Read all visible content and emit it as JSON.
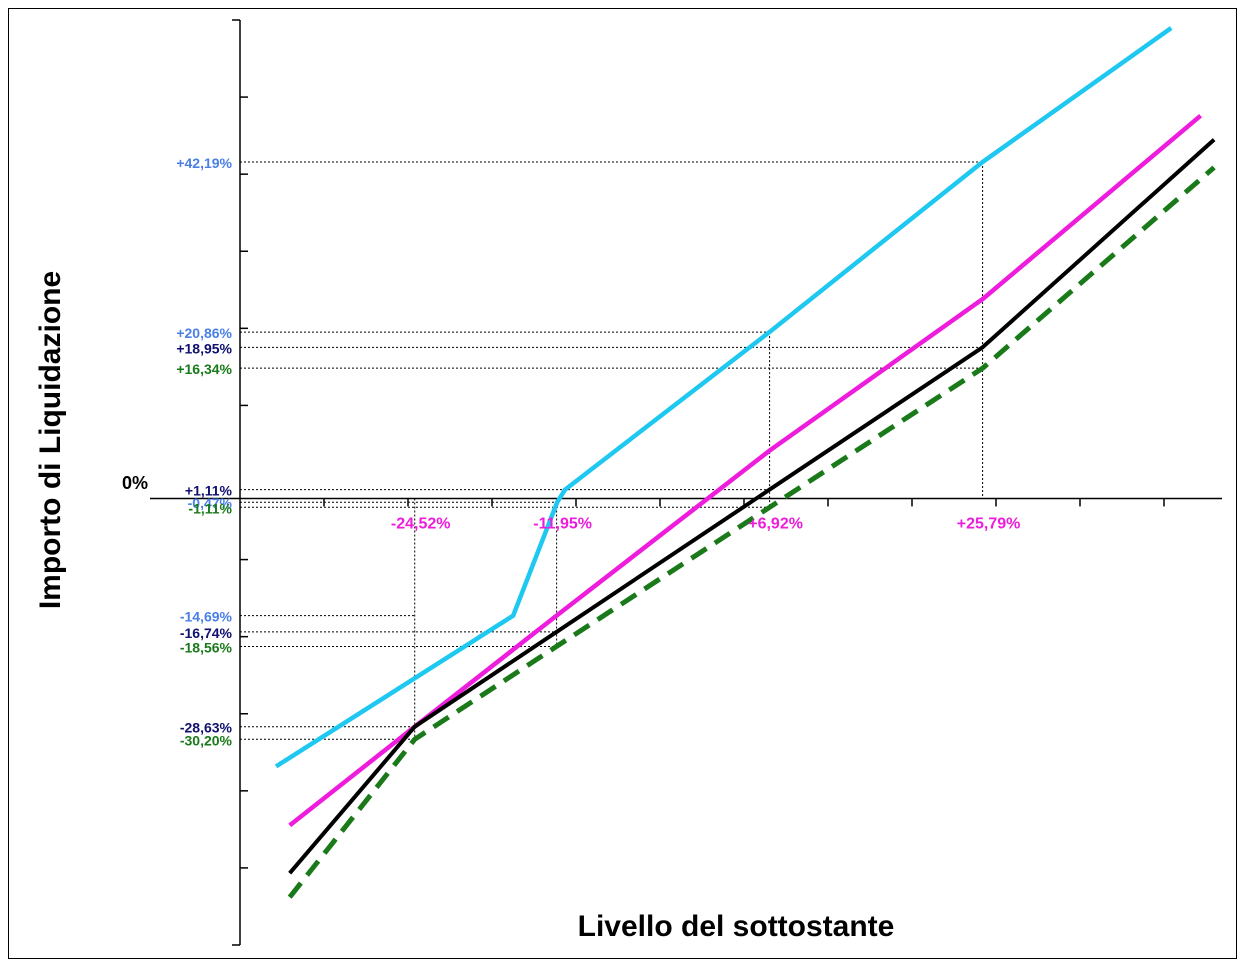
{
  "chart_data": {
    "type": "line",
    "title": "",
    "xlabel": "Livello del sottostante",
    "ylabel": "Importo di Liquidazione",
    "zero_label": "0%",
    "xlim": [
      -40,
      47
    ],
    "ylim": [
      -56,
      60
    ],
    "grid": false,
    "colors": {
      "cyan": "#1EC8F0",
      "magenta": "#EE1CDC",
      "black": "#000000",
      "green": "#1A7A1A",
      "lightblue_label": "#4A7FE8",
      "navy_label": "#101070"
    },
    "series": [
      {
        "x": [
          -36.8,
          -15.8,
          -11.9,
          -11.2,
          6.9,
          25.79,
          42.5
        ],
        "y": [
          -33.6,
          -14.69,
          -0.47,
          1.11,
          20.86,
          42.19,
          59.0
        ]
      },
      {
        "x": [
          -35.6,
          -24.52,
          -11.95,
          6.92,
          25.79,
          45.1
        ],
        "y": [
          -41.0,
          -28.63,
          -14.69,
          6.0,
          25.0,
          48.0
        ]
      },
      {
        "x": [
          -35.6,
          -24.52,
          -11.95,
          6.92,
          25.79,
          46.3
        ],
        "y": [
          -47.0,
          -28.63,
          -16.74,
          1.11,
          18.95,
          45.0
        ]
      },
      {
        "x": [
          -35.6,
          -24.52,
          -11.95,
          6.92,
          25.79,
          46.3
        ],
        "y": [
          -50.0,
          -30.2,
          -18.56,
          -1.11,
          16.34,
          41.5
        ]
      }
    ],
    "x_annotations": [
      {
        "label": "-24,52%",
        "x": -24.52,
        "color": "#EE1CDC"
      },
      {
        "label": "-11,95%",
        "x": -11.95,
        "color": "#EE1CDC"
      },
      {
        "label": "+6,92%",
        "x": 6.92,
        "color": "#EE1CDC"
      },
      {
        "label": "+25,79%",
        "x": 25.79,
        "color": "#EE1CDC"
      }
    ],
    "y_annotations": [
      {
        "label": "+42,19%",
        "y": 42.19,
        "color": "#4A7FE8",
        "x_end": 25.79
      },
      {
        "label": "+20,86%",
        "y": 20.86,
        "color": "#4A7FE8",
        "x_end": 6.92
      },
      {
        "label": "+18,95%",
        "y": 18.95,
        "color": "#101070",
        "x_end": 25.79
      },
      {
        "label": "+16,34%",
        "y": 16.34,
        "color": "#1A7A1A",
        "x_end": 25.79
      },
      {
        "label": "+1,11%",
        "y": 1.11,
        "color": "#101070",
        "x_end": 6.92
      },
      {
        "label": "-0,47%",
        "y": -0.47,
        "color": "#4A7FE8",
        "x_end": -11.95
      },
      {
        "label": "-1,11%",
        "y": -1.11,
        "color": "#1A7A1A",
        "x_end": 6.92
      },
      {
        "label": "-14,69%",
        "y": -14.69,
        "color": "#4A7FE8",
        "x_end": -24.52
      },
      {
        "label": "-16,74%",
        "y": -16.74,
        "color": "#101070",
        "x_end": -11.95
      },
      {
        "label": "-18,56%",
        "y": -18.56,
        "color": "#1A7A1A",
        "x_end": -11.95
      },
      {
        "label": "-28,63%",
        "y": -28.63,
        "color": "#101070",
        "x_end": -24.52
      },
      {
        "label": "-30,20%",
        "y": -30.2,
        "color": "#1A7A1A",
        "x_end": -24.52
      }
    ]
  }
}
